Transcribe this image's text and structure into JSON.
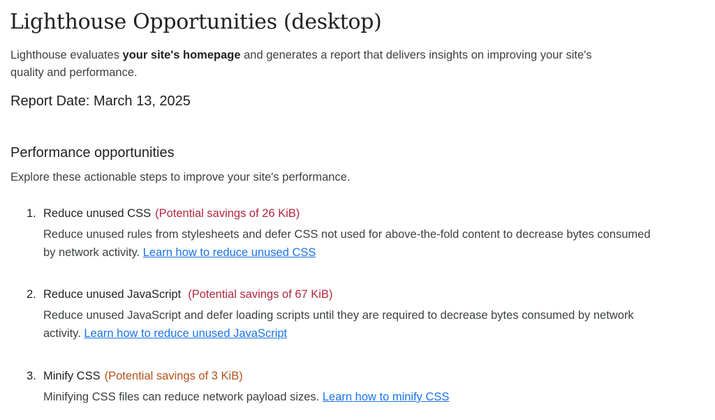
{
  "title": "Lighthouse Opportunities (desktop)",
  "intro": {
    "prefix": "Lighthouse evaluates ",
    "bold": "your site's homepage",
    "suffix": "  and generates a report that delivers insights on improving your site's quality and performance."
  },
  "report_date": "Report Date: March 13, 2025",
  "section": {
    "heading": "Performance opportunities",
    "subtitle": "Explore these actionable steps to improve your site's performance."
  },
  "colors": {
    "savings_high": "#b3263e",
    "savings_medium": "#b5521a",
    "link": "#1a73e8"
  },
  "items": [
    {
      "number": "1.",
      "title": "Reduce unused CSS",
      "savings": "(Potential savings of 26 KiB)",
      "severity": "high",
      "description": "Reduce unused rules from stylesheets and defer CSS not used for above-the-fold content to decrease bytes consumed by network activity. ",
      "link": "Learn how to reduce unused CSS"
    },
    {
      "number": "2.",
      "title": "Reduce unused JavaScript",
      "savings": "(Potential savings of 67 KiB)",
      "severity": "high",
      "description": "Reduce unused JavaScript and defer loading scripts until they are required to decrease bytes consumed by network activity. ",
      "link": "Learn how to reduce unused JavaScript"
    },
    {
      "number": "3.",
      "title": "Minify CSS",
      "savings": "(Potential savings of 3 KiB)",
      "severity": "medium",
      "description": "Minifying CSS files can reduce network payload sizes. ",
      "link": "Learn how to minify CSS"
    }
  ]
}
